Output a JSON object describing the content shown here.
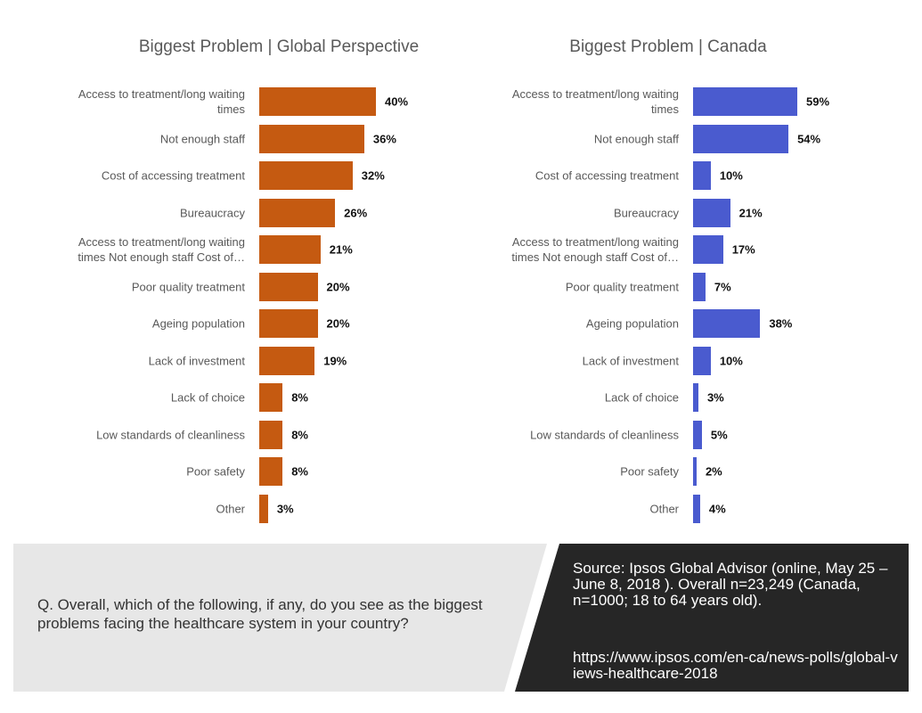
{
  "chart_data": [
    {
      "type": "bar",
      "orientation": "horizontal",
      "title": "Biggest Problem | Global Perspective",
      "color": "#c55a11",
      "categories": [
        "Access to treatment/long waiting times",
        "Not enough staff",
        "Cost of accessing treatment",
        "Bureaucracy",
        "Access to treatment/long waiting times Not enough staff Cost of…",
        "Poor quality treatment",
        "Ageing population",
        "Lack of investment",
        "Lack of choice",
        "Low standards of cleanliness",
        "Poor safety",
        "Other"
      ],
      "values": [
        40,
        36,
        32,
        26,
        21,
        20,
        20,
        19,
        8,
        8,
        8,
        3
      ],
      "value_labels": [
        "40%",
        "36%",
        "32%",
        "26%",
        "21%",
        "20%",
        "20%",
        "19%",
        "8%",
        "8%",
        "8%",
        "3%"
      ]
    },
    {
      "type": "bar",
      "orientation": "horizontal",
      "title": "Biggest Problem | Canada",
      "color": "#4a5bcf",
      "categories": [
        "Access to treatment/long waiting times",
        "Not enough staff",
        "Cost of accessing treatment",
        "Bureaucracy",
        "Access to treatment/long waiting times Not enough staff Cost of…",
        "Poor quality treatment",
        "Ageing population",
        "Lack of investment",
        "Lack of choice",
        "Low standards of cleanliness",
        "Poor safety",
        "Other"
      ],
      "values": [
        59,
        54,
        10,
        21,
        17,
        7,
        38,
        10,
        3,
        5,
        2,
        4
      ],
      "value_labels": [
        "59%",
        "54%",
        "10%",
        "21%",
        "17%",
        "7%",
        "38%",
        "10%",
        "3%",
        "5%",
        "2%",
        "4%"
      ]
    }
  ],
  "footer": {
    "question": "Q.   Overall, which of the following, if any, do you see as the biggest problems facing the healthcare system in your country?",
    "source": "Source: Ipsos Global Advisor (online, May 25 – June 8, 2018 ). Overall n=23,249 (Canada, n=1000; 18 to 64 years old).",
    "url": "https://www.ipsos.com/en-ca/news-polls/global-views-healthcare-2018"
  }
}
